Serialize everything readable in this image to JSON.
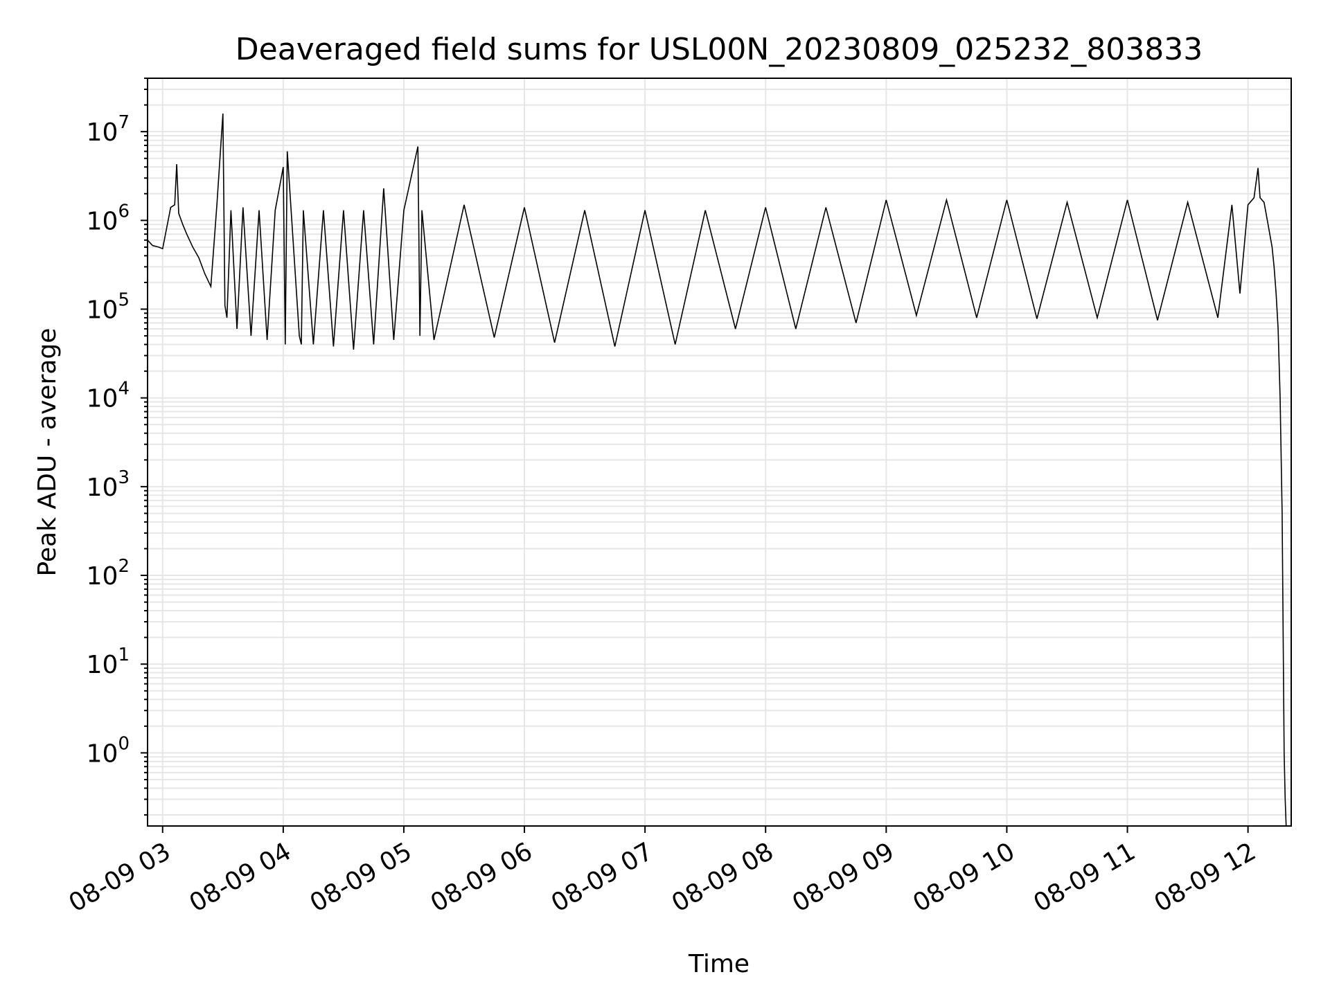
{
  "chart_data": {
    "type": "line",
    "title": "Deaveraged field sums for USL00N_20230809_025232_803833",
    "xlabel": "Time",
    "ylabel": "Peak ADU - average",
    "yscale": "log",
    "ylim": [
      0.15,
      40000000
    ],
    "xlim": [
      "2023-08-09 02:52:30",
      "2023-08-09 12:21:30"
    ],
    "grid": true,
    "line_color": "#000000",
    "grid_color": "#e6e6e6",
    "x_tick_labels": [
      "08-09 03",
      "08-09 04",
      "08-09 05",
      "08-09 06",
      "08-09 07",
      "08-09 08",
      "08-09 09",
      "08-09 10",
      "08-09 11",
      "08-09 12"
    ],
    "y_tick_labels": [
      {
        "base": "10",
        "exp": "0"
      },
      {
        "base": "10",
        "exp": "1"
      },
      {
        "base": "10",
        "exp": "2"
      },
      {
        "base": "10",
        "exp": "3"
      },
      {
        "base": "10",
        "exp": "4"
      },
      {
        "base": "10",
        "exp": "5"
      },
      {
        "base": "10",
        "exp": "6"
      },
      {
        "base": "10",
        "exp": "7"
      }
    ],
    "series": [
      {
        "x": [
          "2023-08-09 02:52:30",
          "2023-08-09 02:55:00",
          "2023-08-09 02:58:00",
          "2023-08-09 03:00:00",
          "2023-08-09 03:04:00",
          "2023-08-09 03:06:00",
          "2023-08-09 03:07:00",
          "2023-08-09 03:08:00",
          "2023-08-09 03:10:00",
          "2023-08-09 03:12:00",
          "2023-08-09 03:15:00",
          "2023-08-09 03:18:00",
          "2023-08-09 03:21:00",
          "2023-08-09 03:24:00",
          "2023-08-09 03:27:00",
          "2023-08-09 03:30:00",
          "2023-08-09 03:31:00",
          "2023-08-09 03:32:00",
          "2023-08-09 03:34:00",
          "2023-08-09 03:37:00",
          "2023-08-09 03:40:00",
          "2023-08-09 03:44:00",
          "2023-08-09 03:48:00",
          "2023-08-09 03:52:00",
          "2023-08-09 03:56:00",
          "2023-08-09 04:00:00",
          "2023-08-09 04:01:00",
          "2023-08-09 04:02:00",
          "2023-08-09 04:08:00",
          "2023-08-09 04:09:00",
          "2023-08-09 04:10:00",
          "2023-08-09 04:15:00",
          "2023-08-09 04:20:00",
          "2023-08-09 04:25:00",
          "2023-08-09 04:30:00",
          "2023-08-09 04:35:00",
          "2023-08-09 04:40:00",
          "2023-08-09 04:45:00",
          "2023-08-09 04:50:00",
          "2023-08-09 04:55:00",
          "2023-08-09 05:00:00",
          "2023-08-09 05:07:00",
          "2023-08-09 05:08:00",
          "2023-08-09 05:09:00",
          "2023-08-09 05:15:00",
          "2023-08-09 05:30:00",
          "2023-08-09 05:45:00",
          "2023-08-09 06:00:00",
          "2023-08-09 06:15:00",
          "2023-08-09 06:30:00",
          "2023-08-09 06:45:00",
          "2023-08-09 07:00:00",
          "2023-08-09 07:15:00",
          "2023-08-09 07:30:00",
          "2023-08-09 07:45:00",
          "2023-08-09 08:00:00",
          "2023-08-09 08:15:00",
          "2023-08-09 08:30:00",
          "2023-08-09 08:45:00",
          "2023-08-09 09:00:00",
          "2023-08-09 09:15:00",
          "2023-08-09 09:30:00",
          "2023-08-09 09:45:00",
          "2023-08-09 10:00:00",
          "2023-08-09 10:15:00",
          "2023-08-09 10:30:00",
          "2023-08-09 10:45:00",
          "2023-08-09 11:00:00",
          "2023-08-09 11:15:00",
          "2023-08-09 11:30:00",
          "2023-08-09 11:45:00",
          "2023-08-09 11:52:00",
          "2023-08-09 11:56:00",
          "2023-08-09 12:00:00",
          "2023-08-09 12:03:00",
          "2023-08-09 12:05:00",
          "2023-08-09 12:06:00",
          "2023-08-09 12:08:00",
          "2023-08-09 12:10:00",
          "2023-08-09 12:12:00",
          "2023-08-09 12:13:00",
          "2023-08-09 12:14:00",
          "2023-08-09 12:15:00",
          "2023-08-09 12:16:00",
          "2023-08-09 12:17:00",
          "2023-08-09 12:17:30",
          "2023-08-09 12:18:00",
          "2023-08-09 12:18:30",
          "2023-08-09 12:19:00"
        ],
        "y": [
          600000,
          520000,
          500000,
          480000,
          1400000,
          1500000,
          4300000,
          1200000,
          900000,
          700000,
          500000,
          380000,
          250000,
          180000,
          1500000,
          16000000,
          110000,
          80000,
          1300000,
          60000,
          1400000,
          50000,
          1300000,
          45000,
          1300000,
          4000000,
          40000,
          6000000,
          50000,
          40000,
          1300000,
          40000,
          1300000,
          38000,
          1300000,
          35000,
          1300000,
          40000,
          2300000,
          45000,
          1300000,
          6800000,
          50000,
          1300000,
          45000,
          1500000,
          48000,
          1400000,
          42000,
          1300000,
          38000,
          1300000,
          40000,
          1300000,
          60000,
          1400000,
          60000,
          1400000,
          70000,
          1700000,
          85000,
          1700000,
          80000,
          1700000,
          78000,
          1600000,
          80000,
          1700000,
          75000,
          1600000,
          80000,
          1500000,
          150000,
          1500000,
          1800000,
          3900000,
          1800000,
          1600000,
          900000,
          500000,
          300000,
          150000,
          60000,
          10000,
          500,
          20,
          1,
          0.3,
          0.15
        ]
      }
    ]
  }
}
